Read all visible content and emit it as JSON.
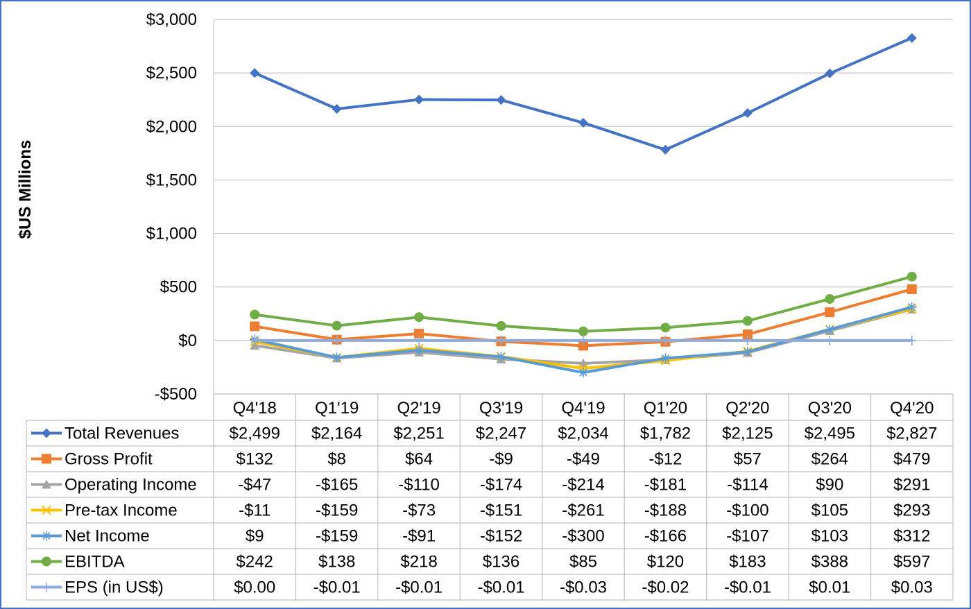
{
  "chart_data": {
    "type": "line",
    "title": "",
    "xlabel": "",
    "ylabel": "$US Millions",
    "ylim": [
      -500,
      3000
    ],
    "yticks": [
      -500,
      0,
      500,
      1000,
      1500,
      2000,
      2500,
      3000
    ],
    "ytick_labels": [
      "-$500",
      "$0",
      "$500",
      "$1,000",
      "$1,500",
      "$2,000",
      "$2,500",
      "$3,000"
    ],
    "grid": true,
    "legend": "data-table",
    "categories": [
      "Q4'18",
      "Q1'19",
      "Q2'19",
      "Q3'19",
      "Q4'19",
      "Q1'20",
      "Q2'20",
      "Q3'20",
      "Q4'20"
    ],
    "series": [
      {
        "name": "Total Revenues",
        "color": "#4472c4",
        "marker": "diamond",
        "values": [
          2499,
          2164,
          2251,
          2247,
          2034,
          1782,
          2125,
          2495,
          2827
        ],
        "labels": [
          "$2,499",
          "$2,164",
          "$2,251",
          "$2,247",
          "$2,034",
          "$1,782",
          "$2,125",
          "$2,495",
          "$2,827"
        ]
      },
      {
        "name": "Gross Profit",
        "color": "#ed7d31",
        "marker": "square",
        "values": [
          132,
          8,
          64,
          -9,
          -49,
          -12,
          57,
          264,
          479
        ],
        "labels": [
          "$132",
          "$8",
          "$64",
          "-$9",
          "-$49",
          "-$12",
          "$57",
          "$264",
          "$479"
        ]
      },
      {
        "name": "Operating Income",
        "color": "#a5a5a5",
        "marker": "triangle",
        "values": [
          -47,
          -165,
          -110,
          -174,
          -214,
          -181,
          -114,
          90,
          291
        ],
        "labels": [
          "-$47",
          "-$165",
          "-$110",
          "-$174",
          "-$214",
          "-$181",
          "-$114",
          "$90",
          "$291"
        ]
      },
      {
        "name": "Pre-tax Income",
        "color": "#ffc000",
        "marker": "x",
        "values": [
          -11,
          -159,
          -73,
          -151,
          -261,
          -188,
          -100,
          105,
          293
        ],
        "labels": [
          "-$11",
          "-$159",
          "-$73",
          "-$151",
          "-$261",
          "-$188",
          "-$100",
          "$105",
          "$293"
        ]
      },
      {
        "name": "Net Income",
        "color": "#5b9bd5",
        "marker": "star",
        "values": [
          9,
          -159,
          -91,
          -152,
          -300,
          -166,
          -107,
          103,
          312
        ],
        "labels": [
          "$9",
          "-$159",
          "-$91",
          "-$152",
          "-$300",
          "-$166",
          "-$107",
          "$103",
          "$312"
        ]
      },
      {
        "name": "EBITDA",
        "color": "#70ad47",
        "marker": "circle",
        "values": [
          242,
          138,
          218,
          136,
          85,
          120,
          183,
          388,
          597
        ],
        "labels": [
          "$242",
          "$138",
          "$218",
          "$136",
          "$85",
          "$120",
          "$183",
          "$388",
          "$597"
        ]
      },
      {
        "name": "EPS (in US$)",
        "color": "#8faadc",
        "marker": "plus",
        "values": [
          0.0,
          -0.01,
          -0.01,
          -0.01,
          -0.03,
          -0.02,
          -0.01,
          0.01,
          0.03
        ],
        "labels": [
          "$0.00",
          "-$0.01",
          "-$0.01",
          "-$0.01",
          "-$0.03",
          "-$0.02",
          "-$0.01",
          "$0.01",
          "$0.03"
        ]
      }
    ]
  }
}
